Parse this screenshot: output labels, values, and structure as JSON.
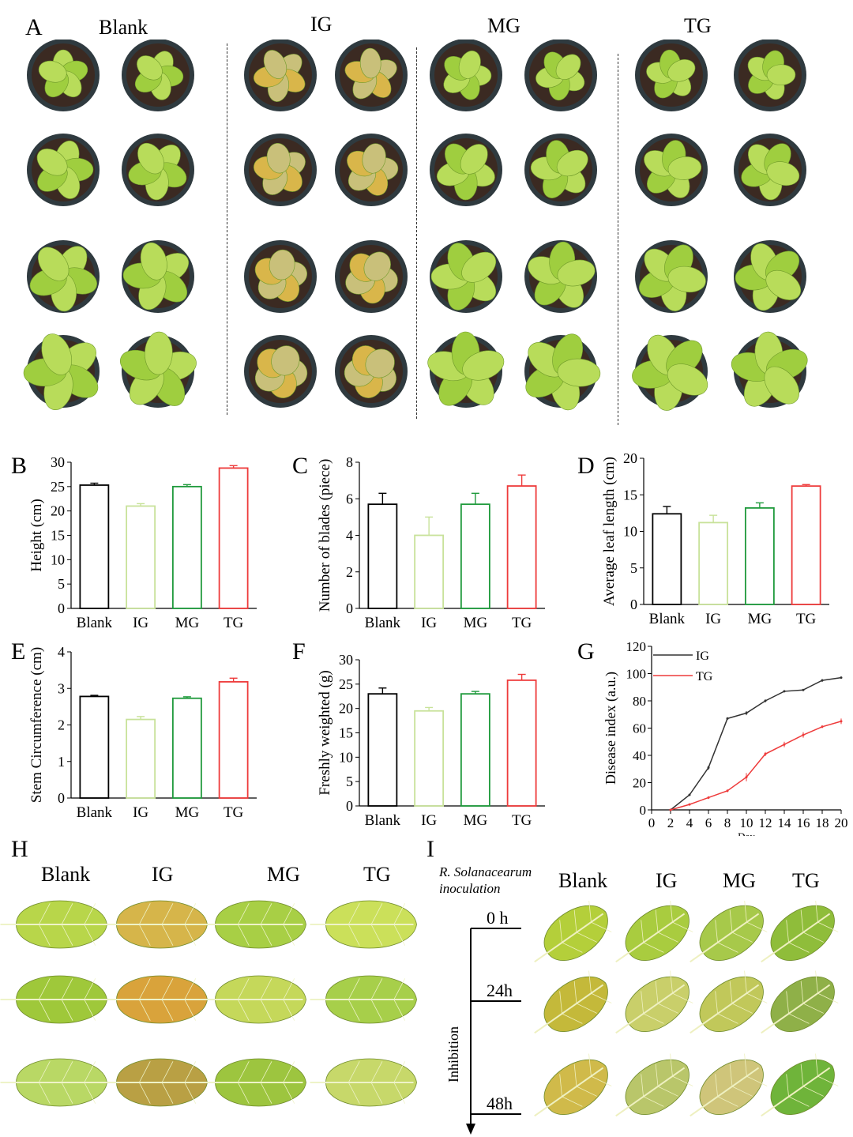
{
  "panels": {
    "A": {
      "letter": "A",
      "groups": [
        "Blank",
        "IG",
        "MG",
        "TG"
      ]
    },
    "H": {
      "letter": "H",
      "groups": [
        "Blank",
        "IG",
        "MG",
        "TG"
      ]
    },
    "I": {
      "letter": "I",
      "inoculation_line1": "R. Solanacearum",
      "inoculation_line2": "inoculation",
      "axis_label": "Inhibition",
      "times": [
        "0 h",
        "24h",
        "48h"
      ],
      "groups": [
        "Blank",
        "IG",
        "MG",
        "TG"
      ]
    }
  },
  "colors": {
    "blank": "#000000",
    "ig": "#c8e29a",
    "mg": "#1f9a3c",
    "tg": "#ee3b3b",
    "ig_line": "#333333",
    "tg_line": "#ee3b3b",
    "leaf_green": "#9fce3f",
    "leaf_yellow": "#d9b64a",
    "pot": "#2f3a3f",
    "soil": "#3b2a22"
  },
  "chart_data": [
    {
      "panel": "B",
      "type": "bar",
      "categories": [
        "Blank",
        "IG",
        "MG",
        "TG"
      ],
      "values": [
        25.3,
        21.0,
        25.0,
        28.8
      ],
      "errors": [
        0.4,
        0.5,
        0.4,
        0.5
      ],
      "ylabel": "Height (cm)",
      "ylim": [
        0,
        30
      ],
      "yticks": [
        "0",
        "5",
        "10",
        "15",
        "20",
        "25",
        "30"
      ]
    },
    {
      "panel": "C",
      "type": "bar",
      "categories": [
        "Blank",
        "IG",
        "MG",
        "TG"
      ],
      "values": [
        5.7,
        4.0,
        5.7,
        6.7
      ],
      "errors": [
        0.6,
        1.0,
        0.6,
        0.6
      ],
      "ylabel": "Number of blades (piece)",
      "ylim": [
        0,
        8
      ],
      "yticks": [
        "0",
        "2",
        "4",
        "6",
        "8"
      ]
    },
    {
      "panel": "D",
      "type": "bar",
      "categories": [
        "Blank",
        "IG",
        "MG",
        "TG"
      ],
      "values": [
        12.4,
        11.2,
        13.2,
        16.2
      ],
      "errors": [
        1.0,
        1.0,
        0.7,
        0.2
      ],
      "ylabel": "Average leaf length (cm)",
      "ylim": [
        0,
        20
      ],
      "yticks": [
        "0",
        "5",
        "10",
        "15",
        "20"
      ]
    },
    {
      "panel": "E",
      "type": "bar",
      "categories": [
        "Blank",
        "IG",
        "MG",
        "TG"
      ],
      "values": [
        2.78,
        2.15,
        2.73,
        3.18
      ],
      "errors": [
        0.03,
        0.08,
        0.04,
        0.1
      ],
      "ylabel": "Stem Circumference (cm)",
      "ylim": [
        0,
        4
      ],
      "yticks": [
        "0",
        "1",
        "2",
        "3",
        "4"
      ]
    },
    {
      "panel": "F",
      "type": "bar",
      "categories": [
        "Blank",
        "IG",
        "MG",
        "TG"
      ],
      "values": [
        23.0,
        19.5,
        23.0,
        25.8
      ],
      "errors": [
        1.2,
        0.7,
        0.5,
        1.2
      ],
      "ylabel": "Freshly weighted (g)",
      "ylim": [
        0,
        30
      ],
      "yticks": [
        "0",
        "5",
        "10",
        "15",
        "20",
        "25",
        "30"
      ]
    },
    {
      "panel": "G",
      "type": "line",
      "xlabel": "Day",
      "ylabel": "Disease index (a.u.)",
      "xlim": [
        0,
        20
      ],
      "ylim": [
        0,
        120
      ],
      "xticks": [
        "0",
        "2",
        "4",
        "6",
        "8",
        "10",
        "12",
        "14",
        "16",
        "18",
        "20"
      ],
      "yticks": [
        "0",
        "20",
        "40",
        "60",
        "80",
        "100",
        "120"
      ],
      "legend_position": "top-left",
      "x": [
        2,
        4,
        6,
        8,
        10,
        12,
        14,
        16,
        18,
        20
      ],
      "series": [
        {
          "name": "IG",
          "values": [
            0,
            11,
            31,
            67,
            71,
            80,
            87,
            88,
            95,
            97
          ],
          "errors": [
            0,
            0.5,
            1.5,
            1,
            1.5,
            1,
            0.5,
            0.5,
            1,
            0.5
          ]
        },
        {
          "name": "TG",
          "values": [
            0,
            4,
            9,
            14,
            24,
            41,
            48,
            55,
            61,
            65
          ],
          "errors": [
            0,
            0.5,
            1,
            1,
            3,
            1.5,
            2,
            2,
            1,
            2
          ]
        }
      ]
    }
  ]
}
